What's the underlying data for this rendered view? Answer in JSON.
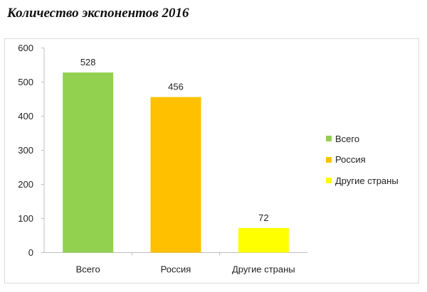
{
  "page": {
    "title": "Количество экспонентов 2016"
  },
  "colors": {
    "vsego": "#92d050",
    "rossiya": "#ffc000",
    "drugie": "#ffff00",
    "axis": "#bfbfbf",
    "text": "#222222"
  },
  "chart_data": {
    "type": "bar",
    "title": "",
    "xlabel": "",
    "ylabel": "",
    "ylim": [
      0,
      600
    ],
    "yticks": [
      0,
      100,
      200,
      300,
      400,
      500,
      600
    ],
    "grid": false,
    "legend_position": "right",
    "categories": [
      "Всего",
      "Россия",
      "Другие страны"
    ],
    "values": [
      528,
      456,
      72
    ],
    "data_labels": [
      "528",
      "456",
      "72"
    ],
    "bar_colors": [
      "#92d050",
      "#ffc000",
      "#ffff00"
    ],
    "legend": [
      {
        "label": "Всего",
        "color": "#92d050"
      },
      {
        "label": "Россия",
        "color": "#ffc000"
      },
      {
        "label": "Другие страны",
        "color": "#ffff00"
      }
    ]
  }
}
